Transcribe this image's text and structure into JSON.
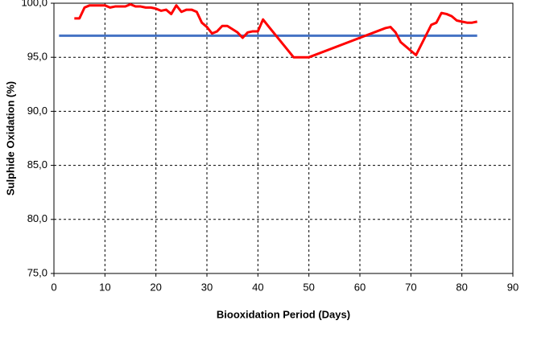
{
  "chart_data": {
    "type": "line",
    "x_label": "Biooxidation Period (Days)",
    "y_label": "Sulphide Oxidation (%)",
    "xlim": [
      0,
      90
    ],
    "xticks": [
      0,
      10,
      20,
      30,
      40,
      50,
      60,
      70,
      80,
      90
    ],
    "ylim": [
      75,
      100
    ],
    "yticks": [
      {
        "value": 75,
        "label": "75,0"
      },
      {
        "value": 80,
        "label": "80,0"
      },
      {
        "value": 85,
        "label": "85,0"
      },
      {
        "value": 90,
        "label": "90,0"
      },
      {
        "value": 95,
        "label": "95,0"
      },
      {
        "value": 100,
        "label": "100,0"
      }
    ],
    "grid": true,
    "series": [
      {
        "color": "#4472c4",
        "x": [
          1,
          83
        ],
        "values": [
          97,
          97
        ]
      },
      {
        "color": "#ff0000",
        "x": [
          4,
          5,
          6,
          7,
          8,
          9,
          10,
          11,
          12,
          13,
          14,
          15,
          16,
          17,
          18,
          19,
          20,
          21,
          22,
          23,
          24,
          25,
          26,
          27,
          28,
          29,
          30,
          31,
          32,
          33,
          34,
          35,
          36,
          37,
          38,
          39,
          40,
          41,
          42,
          47,
          50,
          60,
          65,
          66,
          67,
          68,
          70,
          71,
          74,
          75,
          76,
          77,
          78,
          79,
          80,
          81,
          82,
          83
        ],
        "values": [
          98.6,
          98.6,
          99.6,
          99.8,
          99.8,
          99.8,
          99.8,
          99.6,
          99.7,
          99.7,
          99.7,
          99.9,
          99.7,
          99.7,
          99.6,
          99.6,
          99.5,
          99.3,
          99.4,
          99.0,
          99.8,
          99.2,
          99.4,
          99.4,
          99.2,
          98.2,
          97.8,
          97.2,
          97.4,
          97.9,
          97.9,
          97.6,
          97.3,
          96.8,
          97.3,
          97.4,
          97.4,
          98.5,
          97.9,
          95.0,
          95.0,
          96.8,
          97.7,
          97.8,
          97.3,
          96.4,
          95.6,
          95.2,
          98.0,
          98.2,
          99.1,
          99.0,
          98.8,
          98.4,
          98.3,
          98.2,
          98.2,
          98.3
        ]
      }
    ]
  }
}
